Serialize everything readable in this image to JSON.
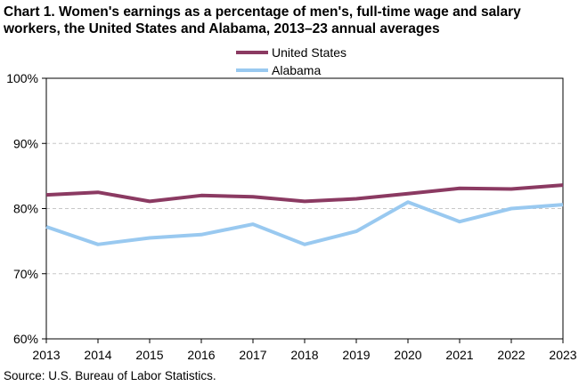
{
  "chart_data": {
    "type": "line",
    "title_line1": "Chart 1. Women's earnings as a percentage of men's, full-time wage and salary",
    "title_line2": "workers, the United States and Alabama,  2013–23 annual averages",
    "x": [
      "2013",
      "2014",
      "2015",
      "2016",
      "2017",
      "2018",
      "2019",
      "2020",
      "2021",
      "2022",
      "2023"
    ],
    "series": [
      {
        "name": "United States",
        "color": "#8b3a62",
        "values": [
          82.1,
          82.5,
          81.1,
          82.0,
          81.8,
          81.1,
          81.5,
          82.3,
          83.1,
          83.0,
          83.6
        ]
      },
      {
        "name": "Alabama",
        "color": "#99c9f0",
        "values": [
          77.2,
          74.5,
          75.5,
          76.0,
          77.6,
          74.5,
          76.5,
          81.0,
          78.0,
          80.0,
          80.6
        ]
      }
    ],
    "ylim": [
      60,
      100
    ],
    "yticks": [
      60,
      70,
      80,
      90,
      100
    ],
    "ytick_labels": [
      "60%",
      "70%",
      "80%",
      "90%",
      "100%"
    ],
    "grid": true,
    "legend": "top-center",
    "xlabel": "",
    "ylabel": ""
  },
  "source": "Source: U.S. Bureau of Labor Statistics."
}
